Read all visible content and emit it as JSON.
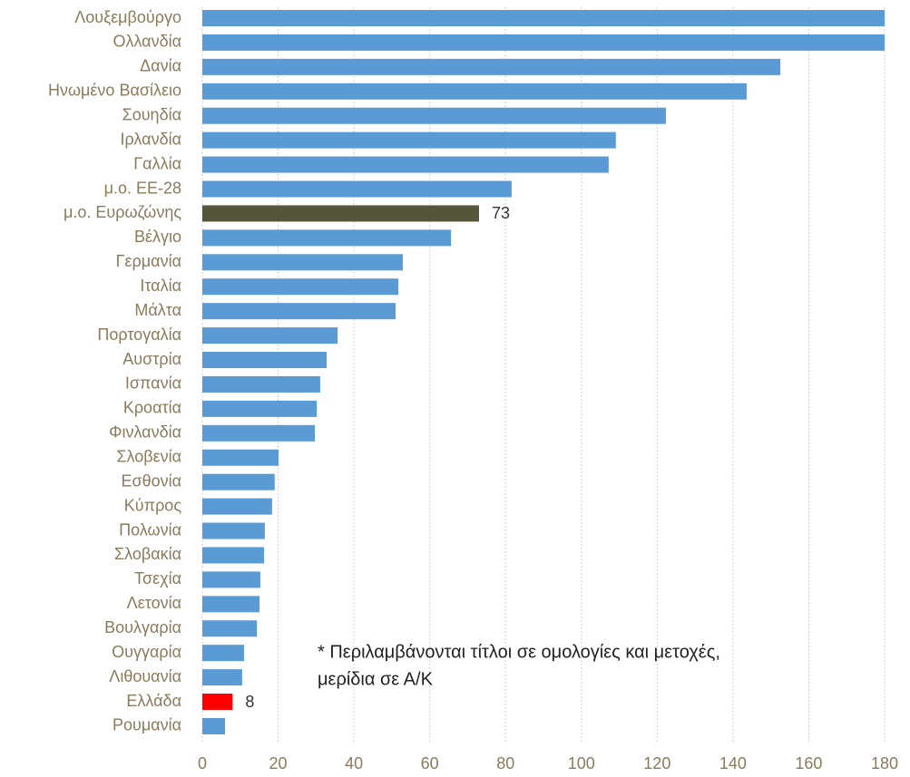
{
  "chart_data": {
    "type": "bar",
    "orientation": "horizontal",
    "categories": [
      "Λουξεμβούργο",
      "Ολλανδία",
      "Δανία",
      "Ηνωμένο Βασίλειο",
      "Σουηδία",
      "Ιρλανδία",
      "Γαλλία",
      "μ.ο. ΕΕ-28",
      "μ.ο. Ευρωζώνης",
      "Βέλγιο",
      "Γερμανία",
      "Ιταλία",
      "Μάλτα",
      "Πορτογαλία",
      "Αυστρία",
      "Ισπανία",
      "Κροατία",
      "Φινλανδία",
      "Σλοβενία",
      "Εσθονία",
      "Κύπρος",
      "Πολωνία",
      "Σλοβακία",
      "Τσεχία",
      "Λετονία",
      "Βουλγαρία",
      "Ουγγαρία",
      "Λιθουανία",
      "Ελλάδα",
      "Ρουμανία"
    ],
    "values": [
      180,
      180,
      152.5,
      143.6,
      122.3,
      109.1,
      107.2,
      81.6,
      73,
      65.6,
      52.9,
      51.7,
      51,
      35.7,
      32.8,
      31.1,
      30.2,
      29.7,
      20.1,
      19.1,
      18.4,
      16.5,
      16.3,
      15.3,
      15.1,
      14.4,
      11,
      10.5,
      8,
      6
    ],
    "value_labels": [
      null,
      null,
      null,
      null,
      null,
      null,
      null,
      null,
      "73",
      null,
      null,
      null,
      null,
      null,
      null,
      null,
      null,
      null,
      null,
      null,
      null,
      null,
      null,
      null,
      null,
      null,
      null,
      null,
      "8",
      null
    ],
    "colors": [
      "#5b9bd5",
      "#5b9bd5",
      "#5b9bd5",
      "#5b9bd5",
      "#5b9bd5",
      "#5b9bd5",
      "#5b9bd5",
      "#5b9bd5",
      "#55553a",
      "#5b9bd5",
      "#5b9bd5",
      "#5b9bd5",
      "#5b9bd5",
      "#5b9bd5",
      "#5b9bd5",
      "#5b9bd5",
      "#5b9bd5",
      "#5b9bd5",
      "#5b9bd5",
      "#5b9bd5",
      "#5b9bd5",
      "#5b9bd5",
      "#5b9bd5",
      "#5b9bd5",
      "#5b9bd5",
      "#5b9bd5",
      "#5b9bd5",
      "#5b9bd5",
      "#ff0000",
      "#5b9bd5"
    ],
    "xlim": [
      0,
      180
    ],
    "xticks": [
      0,
      20,
      40,
      60,
      80,
      100,
      120,
      140,
      160,
      180
    ],
    "grid": true,
    "annotation": [
      "* Περιλαμβάνονται τίτλοι σε ομολογίες και μετοχές,",
      "μερίδια σε Α/Κ"
    ]
  }
}
